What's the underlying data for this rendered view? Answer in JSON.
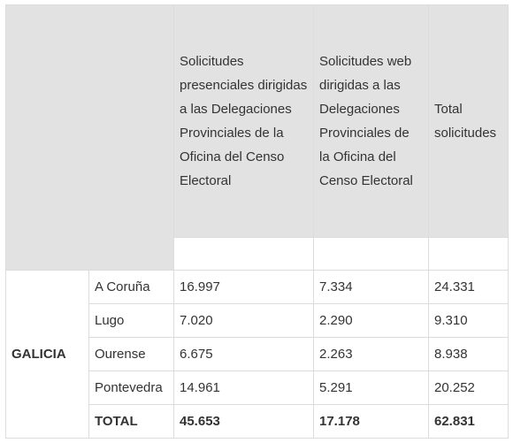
{
  "table": {
    "header": [
      "Solicitudes presenciales dirigidas a las Delegaciones Provinciales de la Oficina del Censo Electoral",
      "Solicitudes web dirigidas a las Delegaciones Provinciales de la Oficina del Censo Electoral",
      "Total solicitudes"
    ],
    "region": "GALICIA",
    "rows": [
      [
        "A Coruña",
        "16.997",
        "7.334",
        "24.331"
      ],
      [
        "Lugo",
        "7.020",
        "2.290",
        "9.310"
      ],
      [
        "Ourense",
        "6.675",
        "2.263",
        "8.938"
      ],
      [
        "Pontevedra",
        "14.961",
        "5.291",
        "20.252"
      ],
      [
        "TOTAL",
        "45.653",
        "17.178",
        "62.831"
      ]
    ]
  }
}
